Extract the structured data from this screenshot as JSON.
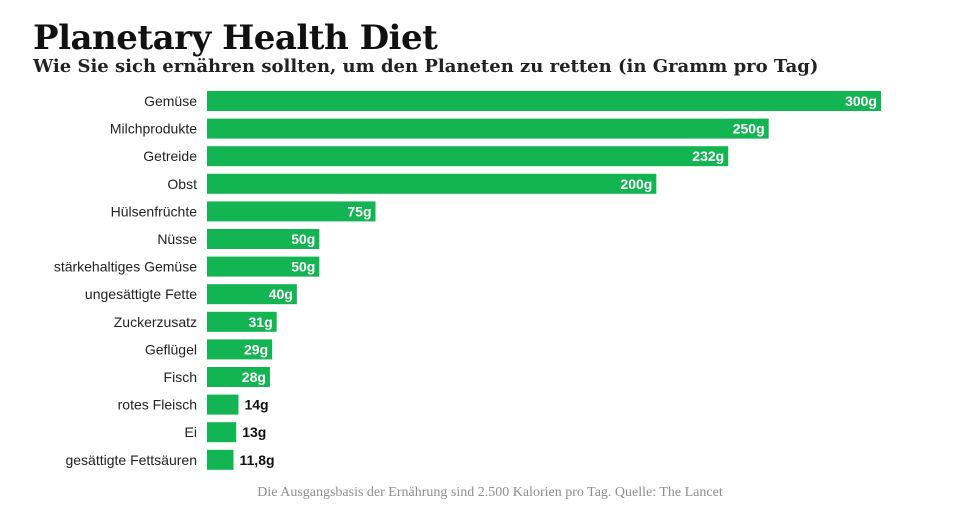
{
  "header": {
    "title": "Planetary Health Diet",
    "subtitle": "Wie Sie sich ernähren sollten, um den Planeten zu retten (in Gramm pro Tag)"
  },
  "footer": {
    "source": "Die Ausgangsbasis der Ernährung sind 2.500 Kalorien pro Tag. Quelle: The Lancet"
  },
  "colors": {
    "bar": "#12b552",
    "label_inside": "#ffffff",
    "label_outside": "#111111"
  },
  "chart_data": {
    "type": "bar",
    "orientation": "horizontal",
    "categories": [
      "Gemüse",
      "Milchprodukte",
      "Getreide",
      "Obst",
      "Hülsenfrüchte",
      "Nüsse",
      "stärkehaltiges Gemüse",
      "ungesättigte Fette",
      "Zuckerzusatz",
      "Geflügel",
      "Fisch",
      "rotes Fleisch",
      "Ei",
      "gesättigte Fettsäuren"
    ],
    "values": [
      300,
      250,
      232,
      200,
      75,
      50,
      50,
      40,
      31,
      29,
      28,
      14,
      13,
      11.8
    ],
    "value_labels": [
      "300g",
      "250g",
      "232g",
      "200g",
      "75g",
      "50g",
      "50g",
      "40g",
      "31g",
      "29g",
      "28g",
      "14g",
      "13g",
      "11,8g"
    ],
    "xlim": [
      0,
      300
    ],
    "grid": false,
    "legend": "none"
  }
}
